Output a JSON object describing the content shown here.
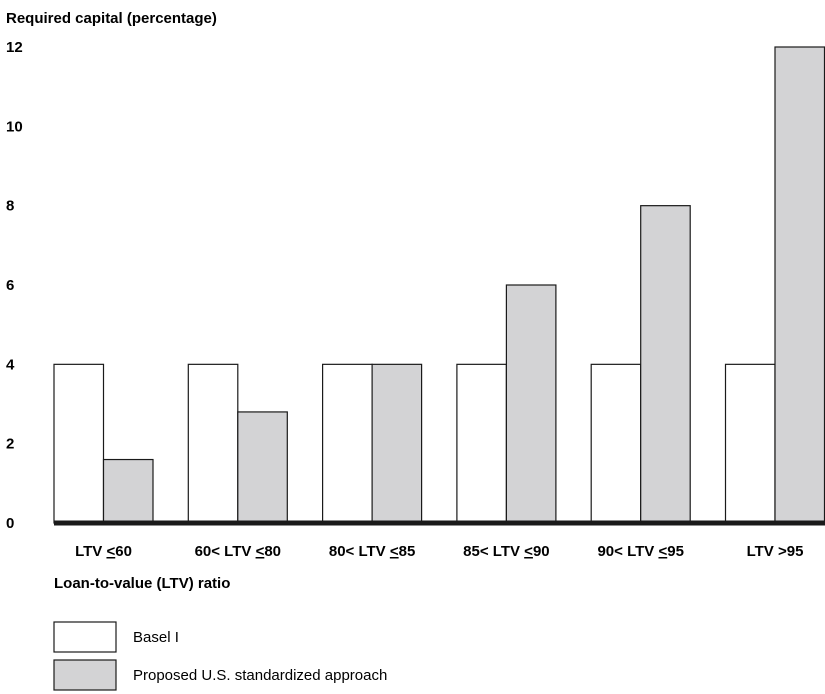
{
  "chart_data": {
    "type": "bar",
    "ylabel": "Required capital (percentage)",
    "xlabel": "Loan-to-value (LTV) ratio",
    "ylim": [
      0,
      12
    ],
    "yticks": [
      0,
      2,
      4,
      6,
      8,
      10,
      12
    ],
    "grid": false,
    "legend_position": "bottom-left",
    "categories": [
      {
        "prefix": "LTV ",
        "op": "<",
        "tail": "60"
      },
      {
        "prefix": "60< LTV ",
        "op": "<",
        "tail": "80"
      },
      {
        "prefix": "80< LTV ",
        "op": "<",
        "tail": "85"
      },
      {
        "prefix": "85< LTV ",
        "op": "<",
        "tail": "90"
      },
      {
        "prefix": "90< LTV ",
        "op": "<",
        "tail": "95"
      },
      {
        "prefix": "LTV >95",
        "op": "",
        "tail": ""
      }
    ],
    "series": [
      {
        "name": "Basel I",
        "color": "#ffffff",
        "values": [
          4,
          4,
          4,
          4,
          4,
          4
        ]
      },
      {
        "name": "Proposed U.S. standardized approach",
        "color": "#d3d3d5",
        "values": [
          1.6,
          2.8,
          4,
          6,
          8,
          12
        ]
      }
    ],
    "axis_color": "#1a1a1a"
  }
}
